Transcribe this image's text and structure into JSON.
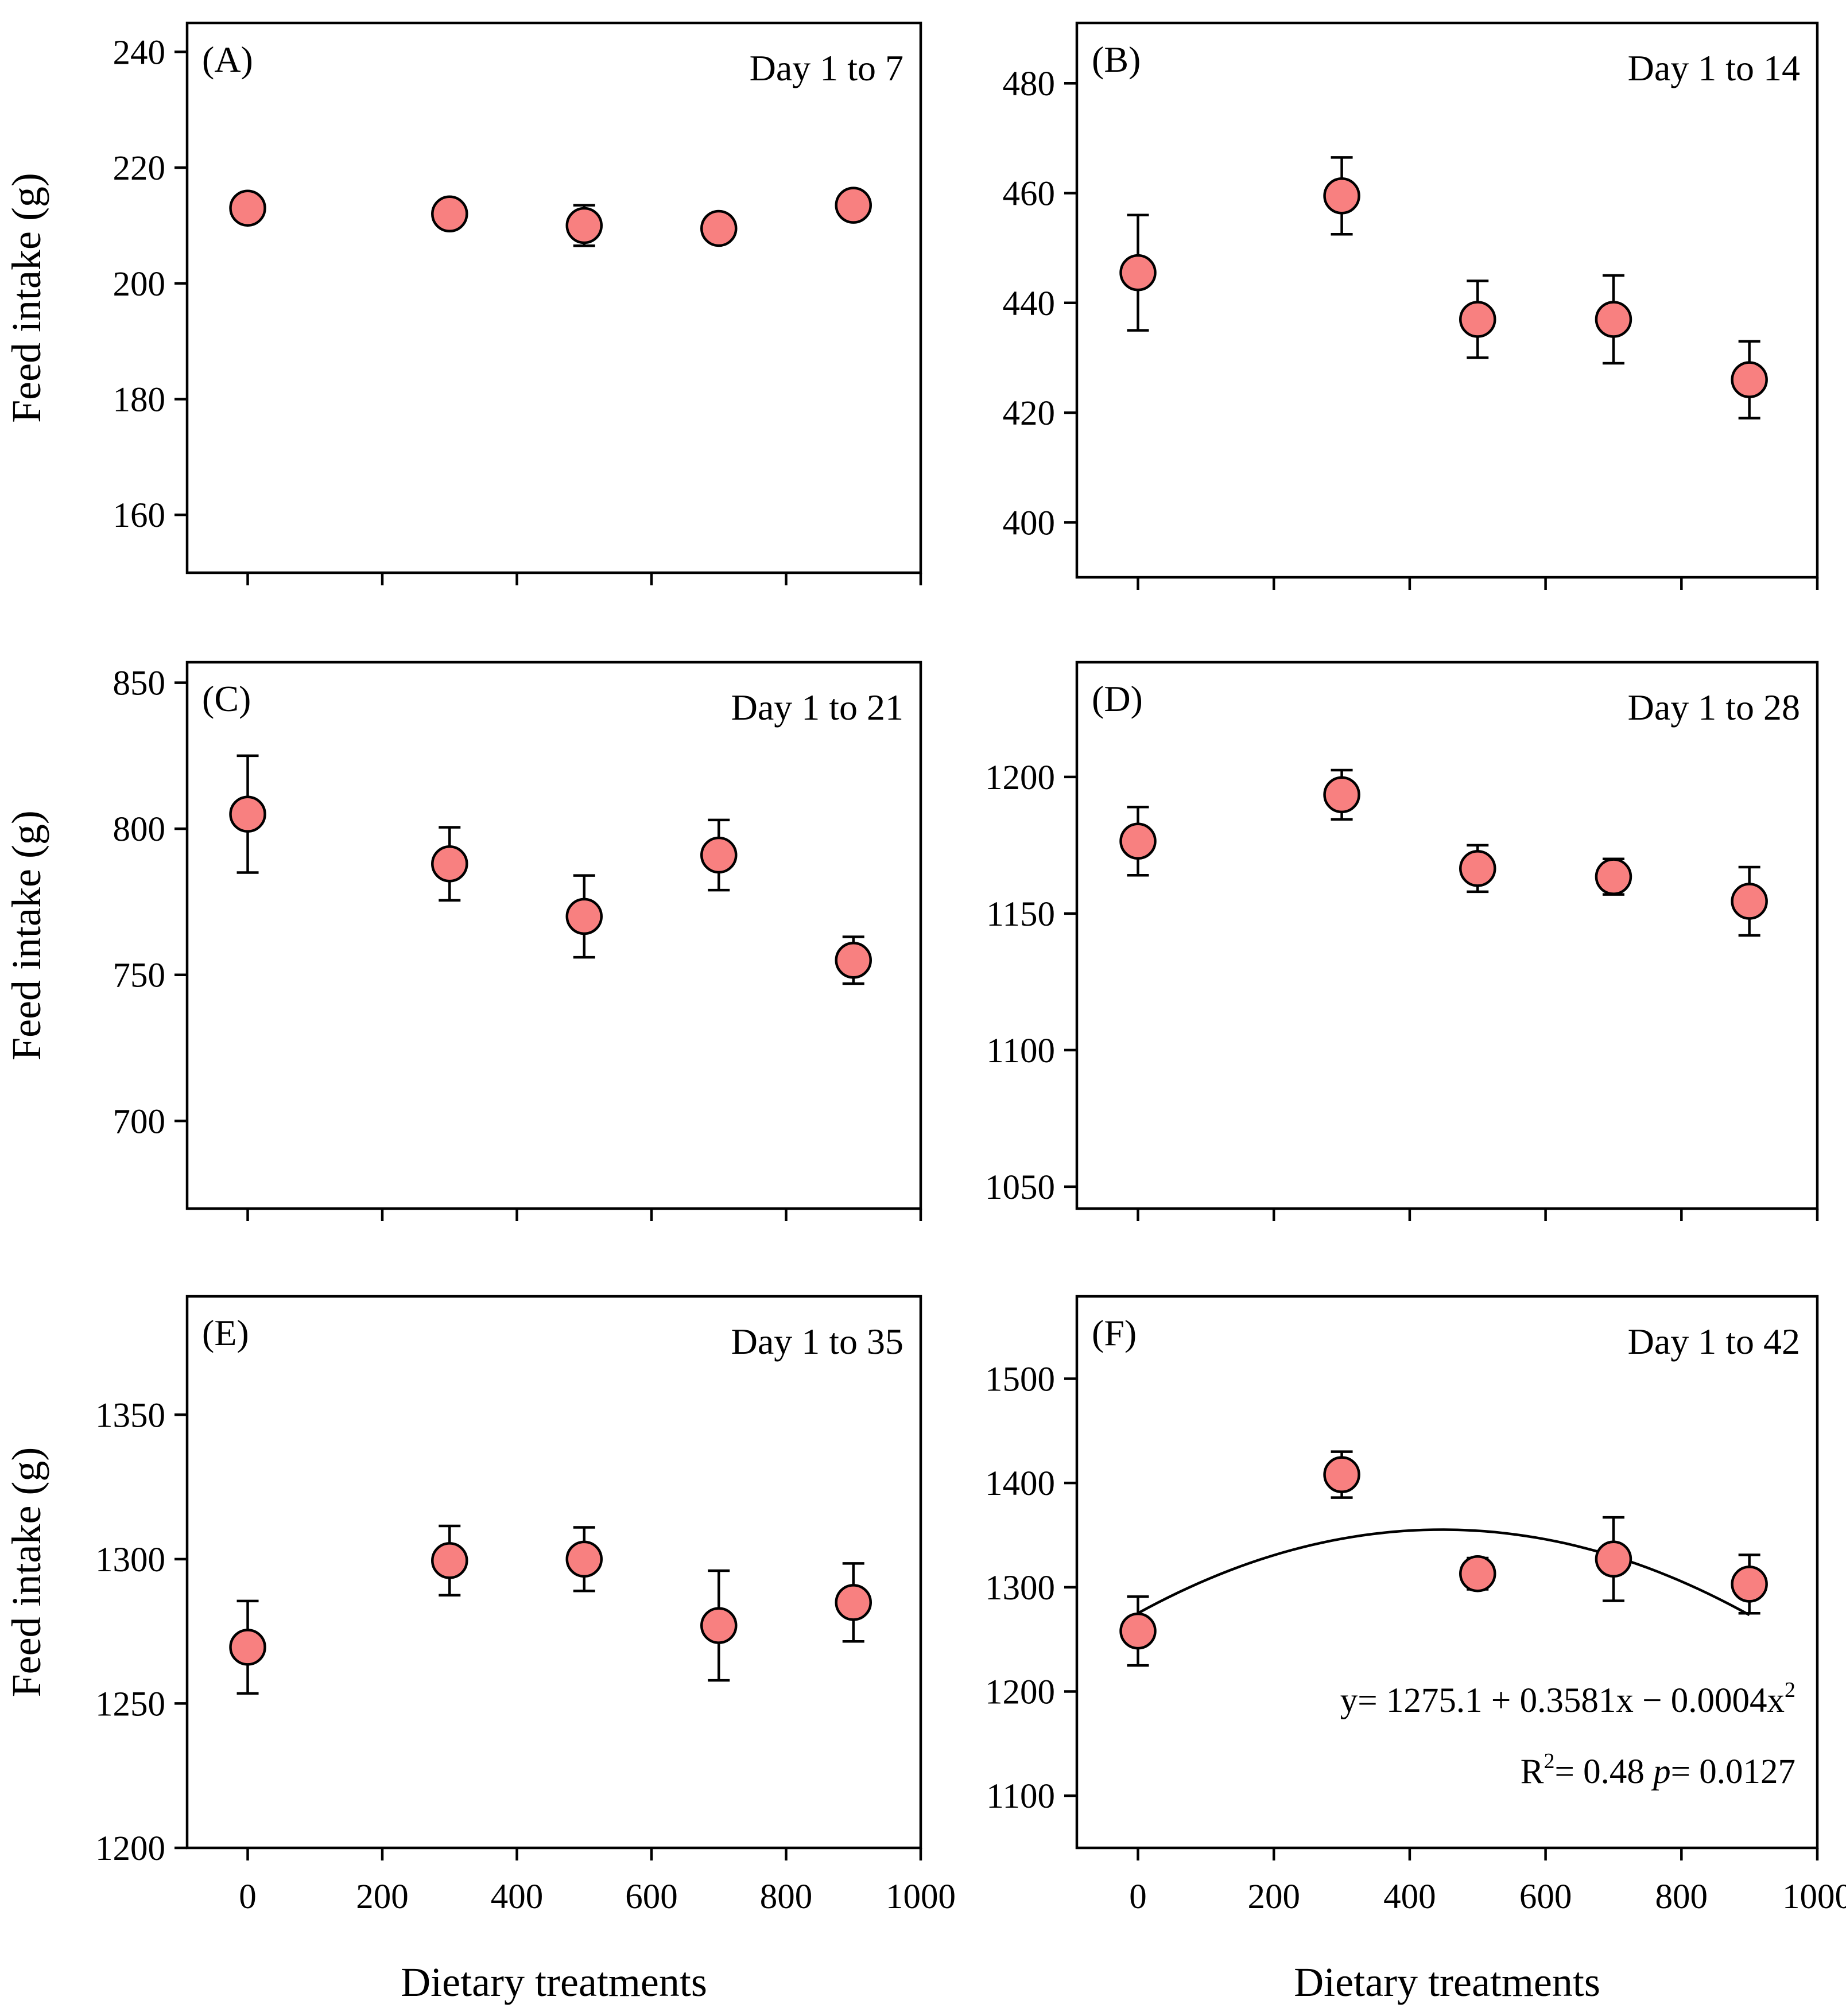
{
  "figure": {
    "xlabel": "Dietary treatments",
    "ylabel": "Feed intake (g)"
  },
  "chart_data": [
    {
      "type": "scatter",
      "panel": "(A)",
      "period": "Day 1 to 7",
      "x": [
        0,
        300,
        500,
        700,
        900
      ],
      "y": [
        213,
        212,
        210,
        209.5,
        213.5
      ],
      "yerr": [
        0.3,
        0.3,
        3.5,
        0.3,
        0.3
      ],
      "xlim": [
        -90,
        1000
      ],
      "ylim": [
        150,
        245
      ],
      "yticks": [
        160,
        180,
        200,
        220,
        240
      ],
      "xticks": [
        0,
        200,
        400,
        600,
        800,
        1000
      ],
      "show_xtick_labels": false,
      "xlabel": "",
      "ylabel": "Feed intake (g)"
    },
    {
      "type": "scatter",
      "panel": "(B)",
      "period": "Day 1 to 14",
      "x": [
        0,
        300,
        500,
        700,
        900
      ],
      "y": [
        445.5,
        459.5,
        437,
        437,
        426
      ],
      "yerr": [
        10.5,
        7,
        7,
        8,
        7
      ],
      "xlim": [
        -90,
        1000
      ],
      "ylim": [
        390,
        491
      ],
      "yticks": [
        400,
        420,
        440,
        460,
        480
      ],
      "xticks": [
        0,
        200,
        400,
        600,
        800,
        1000
      ],
      "show_xtick_labels": false,
      "xlabel": "",
      "ylabel": ""
    },
    {
      "type": "scatter",
      "panel": "(C)",
      "period": "Day 1 to 21",
      "x": [
        0,
        300,
        500,
        700,
        900
      ],
      "y": [
        805,
        788,
        770,
        791,
        755
      ],
      "yerr": [
        20,
        12.5,
        14,
        12,
        8
      ],
      "xlim": [
        -90,
        1000
      ],
      "ylim": [
        670,
        857
      ],
      "yticks": [
        700,
        750,
        800,
        850
      ],
      "xticks": [
        0,
        200,
        400,
        600,
        800,
        1000
      ],
      "show_xtick_labels": false,
      "xlabel": "",
      "ylabel": "Feed intake (g)"
    },
    {
      "type": "scatter",
      "panel": "(D)",
      "period": "Day 1 to 28",
      "x": [
        0,
        300,
        500,
        700,
        900
      ],
      "y": [
        1176.5,
        1193.5,
        1166.5,
        1163.5,
        1154.5
      ],
      "yerr": [
        12.5,
        9,
        8.5,
        6.5,
        12.5
      ],
      "xlim": [
        -90,
        1000
      ],
      "ylim": [
        1042,
        1242
      ],
      "yticks": [
        1050,
        1100,
        1150,
        1200
      ],
      "xticks": [
        0,
        200,
        400,
        600,
        800,
        1000
      ],
      "show_xtick_labels": false,
      "xlabel": "",
      "ylabel": ""
    },
    {
      "type": "scatter",
      "panel": "(E)",
      "period": "Day 1 to 35",
      "x": [
        0,
        300,
        500,
        700,
        900
      ],
      "y": [
        1269.5,
        1299.5,
        1300,
        1277,
        1285
      ],
      "yerr": [
        16,
        12,
        11,
        19,
        13.5
      ],
      "xlim": [
        -90,
        1000
      ],
      "ylim": [
        1200,
        1391
      ],
      "yticks": [
        1200,
        1250,
        1300,
        1350
      ],
      "xticks": [
        0,
        200,
        400,
        600,
        800,
        1000
      ],
      "show_xtick_labels": true,
      "xlabel": "Dietary treatments",
      "ylabel": "Feed intake (g)"
    },
    {
      "type": "scatter",
      "panel": "(F)",
      "period": "Day 1 to 42",
      "x": [
        0,
        300,
        500,
        700,
        900
      ],
      "y": [
        1258,
        1408,
        1313,
        1327,
        1303
      ],
      "yerr": [
        33,
        22,
        15,
        40,
        28
      ],
      "xlim": [
        -90,
        1000
      ],
      "ylim": [
        1050,
        1579
      ],
      "yticks": [
        1100,
        1200,
        1300,
        1400,
        1500
      ],
      "xticks": [
        0,
        200,
        400,
        600,
        800,
        1000
      ],
      "show_xtick_labels": true,
      "xlabel": "Dietary treatments",
      "ylabel": "",
      "fit": {
        "type": "quadratic",
        "a": 1275.1,
        "b": 0.3581,
        "c": -0.0004,
        "xrange": [
          0,
          900
        ]
      },
      "equation": {
        "lhs": "y= 1275.1 + 0.3581x − 0.0004x",
        "lhs_exp": "2",
        "r_prefix": "R",
        "r_exp": "2",
        "r_mid": "= 0.48 ",
        "p_symbol": "p",
        "p_value": "= 0.0127"
      }
    }
  ]
}
